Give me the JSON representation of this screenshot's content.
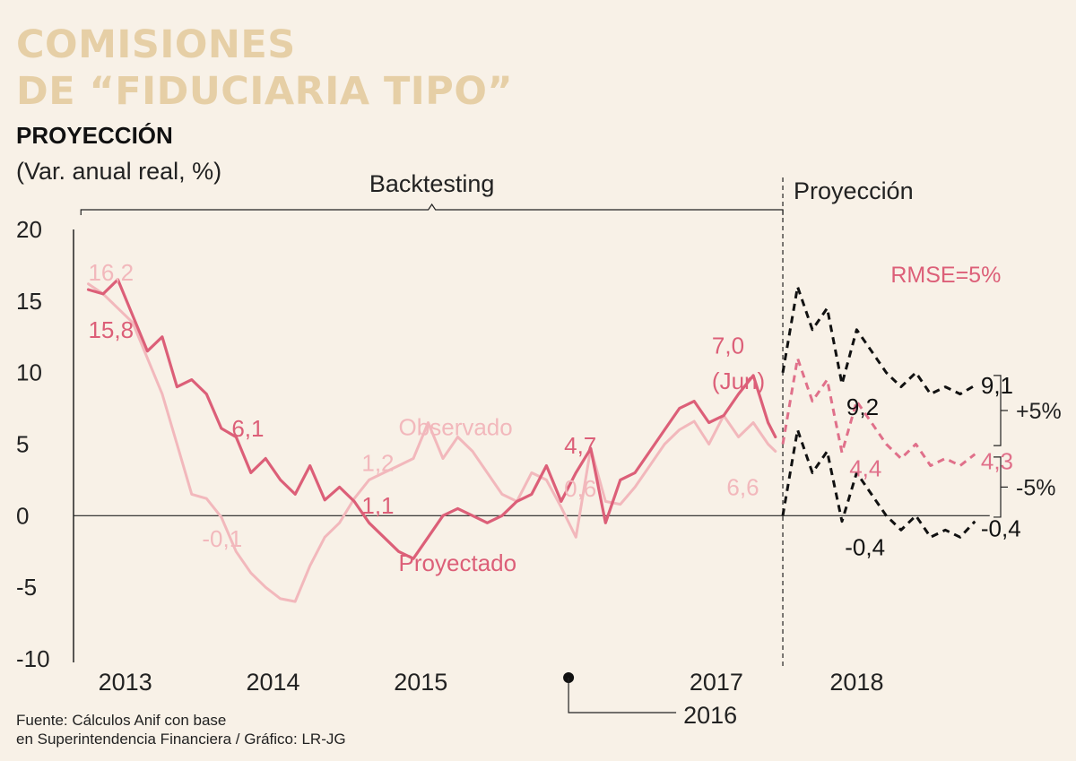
{
  "header": {
    "title_line1": "COMISIONES",
    "title_line2": "DE “FIDUCIARIA TIPO”",
    "subtitle": "PROYECCIÓN",
    "units": "(Var. anual real, %)"
  },
  "source": {
    "line1": "Fuente: Cálculos Anif con base",
    "line2": "en Superintendencia Financiera / Gráfico: LR-JG"
  },
  "colors": {
    "observado": "#f2b8bc",
    "proyectado": "#dc5f78",
    "projection_center": "#e0708a",
    "band": "#111111",
    "axis": "#222222"
  },
  "chart_data": {
    "type": "line",
    "ylim": [
      -10,
      20
    ],
    "xlim": [
      2012.75,
      2019.0
    ],
    "y_ticks": [
      "20",
      "15",
      "10",
      "5",
      "0",
      "-5",
      "-10"
    ],
    "x_labels": [
      {
        "label": "2013",
        "x": 2013.1
      },
      {
        "label": "2014",
        "x": 2014.1
      },
      {
        "label": "2015",
        "x": 2015.1
      },
      {
        "label": "2017",
        "x": 2017.1
      },
      {
        "label": "2018",
        "x": 2018.05
      }
    ],
    "x_label_2016": "2016",
    "x_2016": 2016.1,
    "brackets": {
      "backtesting_label": "Backtesting",
      "projection_label": "Proyección",
      "backtesting_range": [
        2012.8,
        2017.55
      ],
      "projection_start": 2017.55
    },
    "rmse_label": "RMSE=5%",
    "band_labels": {
      "upper": "+5%",
      "lower": "-5%"
    },
    "series": [
      {
        "name": "Observado",
        "label": "Observado",
        "style": "observado",
        "x": [
          2012.85,
          2012.95,
          2013.05,
          2013.15,
          2013.25,
          2013.35,
          2013.45,
          2013.55,
          2013.65,
          2013.75,
          2013.85,
          2013.95,
          2014.05,
          2014.15,
          2014.25,
          2014.35,
          2014.45,
          2014.55,
          2014.65,
          2014.75,
          2014.85,
          2014.95,
          2015.05,
          2015.15,
          2015.25,
          2015.35,
          2015.45,
          2015.55,
          2015.65,
          2015.75,
          2015.85,
          2015.95,
          2016.05,
          2016.15,
          2016.25,
          2016.35,
          2016.45,
          2016.55,
          2016.65,
          2016.75,
          2016.85,
          2016.95,
          2017.05,
          2017.15,
          2017.25,
          2017.35,
          2017.45,
          2017.5
        ],
        "values": [
          16.2,
          15.5,
          14.5,
          13.5,
          11.0,
          8.5,
          5.0,
          1.5,
          1.2,
          -0.1,
          -2.5,
          -4.0,
          -5.0,
          -5.8,
          -6.0,
          -3.5,
          -1.5,
          -0.5,
          1.2,
          2.5,
          3.0,
          3.5,
          4.0,
          6.5,
          4.0,
          5.5,
          4.5,
          3.0,
          1.5,
          1.0,
          3.0,
          2.5,
          0.6,
          -1.5,
          4.7,
          1.0,
          0.8,
          2.0,
          3.5,
          5.0,
          6.0,
          6.6,
          5.0,
          7.0,
          5.5,
          6.5,
          5.0,
          4.5
        ]
      },
      {
        "name": "Proyectado",
        "label": "Proyectado",
        "style": "proyectado",
        "x": [
          2012.85,
          2012.95,
          2013.05,
          2013.15,
          2013.25,
          2013.35,
          2013.45,
          2013.55,
          2013.65,
          2013.75,
          2013.85,
          2013.95,
          2014.05,
          2014.15,
          2014.25,
          2014.35,
          2014.45,
          2014.55,
          2014.65,
          2014.75,
          2014.85,
          2014.95,
          2015.05,
          2015.15,
          2015.25,
          2015.35,
          2015.45,
          2015.55,
          2015.65,
          2015.75,
          2015.85,
          2015.95,
          2016.05,
          2016.15,
          2016.25,
          2016.35,
          2016.45,
          2016.55,
          2016.65,
          2016.75,
          2016.85,
          2016.95,
          2017.05,
          2017.15,
          2017.25,
          2017.35,
          2017.45,
          2017.5
        ],
        "values": [
          15.8,
          15.5,
          16.5,
          14.0,
          11.5,
          12.5,
          9.0,
          9.5,
          8.5,
          6.1,
          5.5,
          3.0,
          4.0,
          2.5,
          1.5,
          3.5,
          1.1,
          2.0,
          1.0,
          -0.5,
          -1.5,
          -2.5,
          -3.0,
          -1.5,
          0.0,
          0.5,
          0.0,
          -0.5,
          0.0,
          1.0,
          1.5,
          3.5,
          1.0,
          3.0,
          4.7,
          -0.5,
          2.5,
          3.0,
          4.5,
          6.0,
          7.5,
          8.0,
          6.5,
          7.0,
          8.5,
          9.8,
          6.5,
          5.5
        ]
      },
      {
        "name": "Banda superior",
        "style": "band",
        "x": [
          2017.55,
          2017.65,
          2017.75,
          2017.85,
          2017.95,
          2018.05,
          2018.15,
          2018.25,
          2018.35,
          2018.45,
          2018.55,
          2018.65,
          2018.75,
          2018.85
        ],
        "values": [
          10.0,
          16.0,
          13.0,
          14.5,
          9.2,
          13.0,
          11.5,
          10.0,
          9.0,
          10.0,
          8.5,
          9.0,
          8.5,
          9.1
        ]
      },
      {
        "name": "Proyección central",
        "style": "projection_center",
        "x": [
          2017.55,
          2017.65,
          2017.75,
          2017.85,
          2017.95,
          2018.05,
          2018.15,
          2018.25,
          2018.35,
          2018.45,
          2018.55,
          2018.65,
          2018.75,
          2018.85
        ],
        "values": [
          5.0,
          11.0,
          8.0,
          9.5,
          4.4,
          8.0,
          6.5,
          5.0,
          4.0,
          5.0,
          3.5,
          4.0,
          3.5,
          4.3
        ]
      },
      {
        "name": "Banda inferior",
        "style": "band",
        "x": [
          2017.55,
          2017.65,
          2017.75,
          2017.85,
          2017.95,
          2018.05,
          2018.15,
          2018.25,
          2018.35,
          2018.45,
          2018.55,
          2018.65,
          2018.75,
          2018.85
        ],
        "values": [
          0.0,
          6.0,
          3.0,
          4.5,
          -0.4,
          3.0,
          1.5,
          0.0,
          -1.0,
          0.0,
          -1.5,
          -1.0,
          -1.5,
          -0.4
        ]
      }
    ],
    "annotations": [
      {
        "text": "16,2",
        "x": 2012.85,
        "y": 17.0,
        "style": "observado",
        "anchor": "start"
      },
      {
        "text": "15,8",
        "x": 2012.85,
        "y": 13.0,
        "style": "proyectado",
        "anchor": "start"
      },
      {
        "text": "6,1",
        "x": 2013.82,
        "y": 6.1,
        "style": "proyectado",
        "anchor": "start"
      },
      {
        "text": "-0,1",
        "x": 2013.62,
        "y": -1.6,
        "style": "observado",
        "anchor": "start"
      },
      {
        "text": "1,2",
        "x": 2014.7,
        "y": 3.7,
        "style": "observado",
        "anchor": "start"
      },
      {
        "text": "1,1",
        "x": 2014.7,
        "y": 0.7,
        "style": "proyectado",
        "anchor": "start"
      },
      {
        "text": "Observado",
        "x": 2014.95,
        "y": 6.2,
        "style": "observado",
        "anchor": "start"
      },
      {
        "text": "Proyectado",
        "x": 2014.95,
        "y": -3.3,
        "style": "proyectado",
        "anchor": "start"
      },
      {
        "text": "4,7",
        "x": 2016.07,
        "y": 4.9,
        "style": "proyectado",
        "anchor": "start"
      },
      {
        "text": "0,6",
        "x": 2016.07,
        "y": 1.9,
        "style": "observado",
        "anchor": "start"
      },
      {
        "text": "7,0",
        "x": 2017.07,
        "y": 11.9,
        "style": "proyectado",
        "anchor": "start"
      },
      {
        "text": "(Jun)",
        "x": 2017.07,
        "y": 9.4,
        "style": "proyectado",
        "anchor": "start"
      },
      {
        "text": "6,6",
        "x": 2017.17,
        "y": 2.0,
        "style": "observado",
        "anchor": "start"
      },
      {
        "text": "9,2",
        "x": 2017.98,
        "y": 7.6,
        "style": "band",
        "anchor": "start"
      },
      {
        "text": "4,4",
        "x": 2018.0,
        "y": 3.3,
        "style": "projection_center",
        "anchor": "start"
      },
      {
        "text": "-0,4",
        "x": 2017.97,
        "y": -2.2,
        "style": "band",
        "anchor": "start"
      },
      {
        "text": "9,1",
        "x": 2018.89,
        "y": 9.1,
        "style": "band",
        "anchor": "start"
      },
      {
        "text": "4,3",
        "x": 2018.89,
        "y": 3.8,
        "style": "projection_center",
        "anchor": "start"
      },
      {
        "text": "-0,4",
        "x": 2018.89,
        "y": -0.9,
        "style": "band",
        "anchor": "start"
      }
    ]
  }
}
